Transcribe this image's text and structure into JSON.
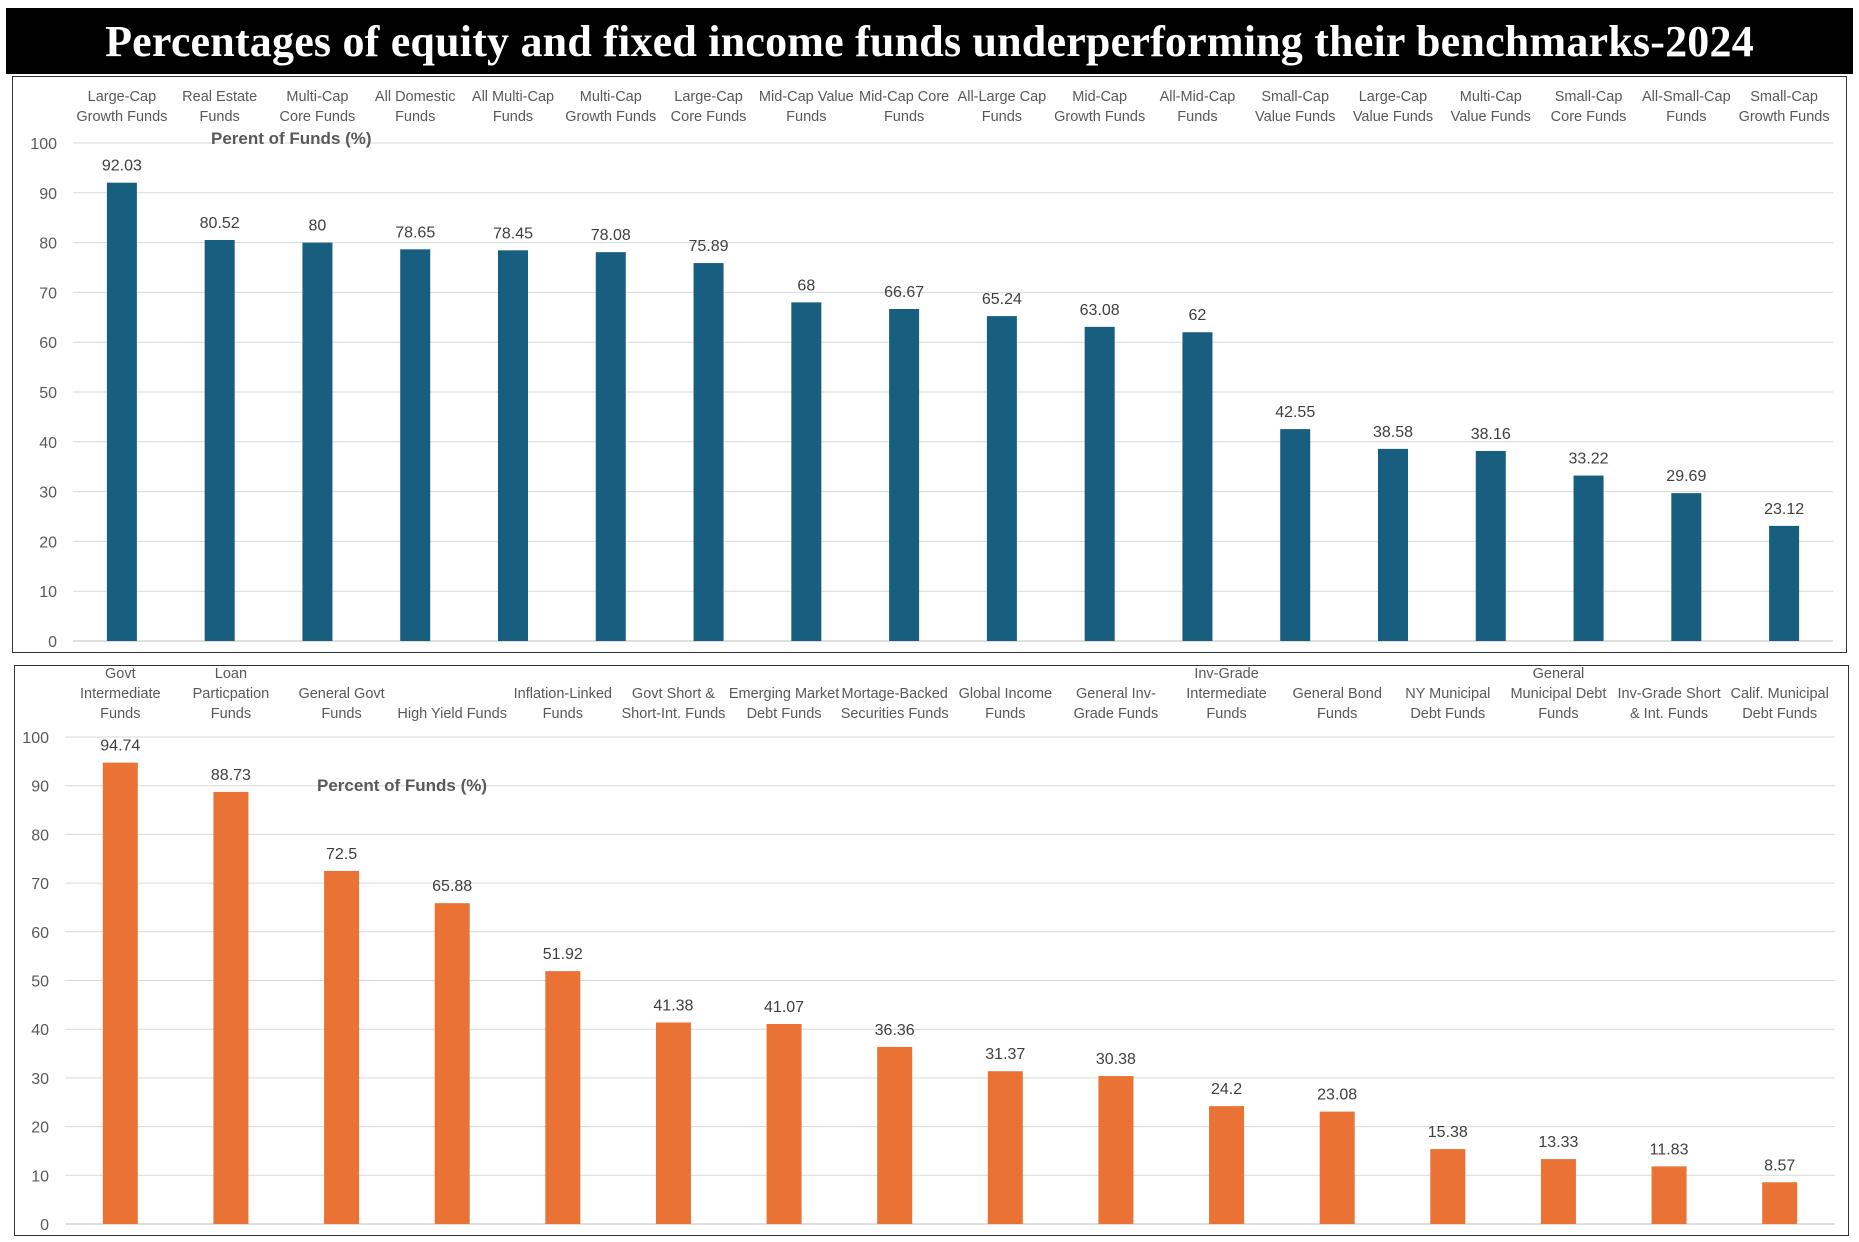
{
  "title": "Percentages of equity and fixed income funds underperforming their benchmarks-2024",
  "chart_data": [
    {
      "type": "bar",
      "name": "equity-funds",
      "annotation": "Perent of Funds (%)",
      "color": "#185F7F",
      "ylim": [
        0,
        100
      ],
      "yticks": [
        0,
        10,
        20,
        30,
        40,
        50,
        60,
        70,
        80,
        90,
        100
      ],
      "grid": true,
      "categories": [
        [
          "Large-Cap",
          "Growth Funds"
        ],
        [
          "Real Estate",
          "Funds"
        ],
        [
          "Multi-Cap",
          "Core Funds"
        ],
        [
          "All Domestic",
          "Funds"
        ],
        [
          "All Multi-Cap",
          "Funds"
        ],
        [
          "Multi-Cap",
          "Growth Funds"
        ],
        [
          "Large-Cap",
          "Core Funds"
        ],
        [
          "Mid-Cap Value",
          "Funds"
        ],
        [
          "Mid-Cap Core",
          "Funds"
        ],
        [
          "All-Large Cap",
          "Funds"
        ],
        [
          "Mid-Cap",
          "Growth Funds"
        ],
        [
          "All-Mid-Cap",
          "Funds"
        ],
        [
          "Small-Cap",
          "Value Funds"
        ],
        [
          "Large-Cap",
          "Value Funds"
        ],
        [
          "Multi-Cap",
          "Value Funds"
        ],
        [
          "Small-Cap",
          "Core Funds"
        ],
        [
          "All-Small-Cap",
          "Funds"
        ],
        [
          "Small-Cap",
          "Growth Funds"
        ]
      ],
      "values": [
        92.03,
        80.52,
        80,
        78.65,
        78.45,
        78.08,
        75.89,
        68,
        66.67,
        65.24,
        63.08,
        62,
        42.55,
        38.58,
        38.16,
        33.22,
        29.69,
        23.12
      ]
    },
    {
      "type": "bar",
      "name": "fixed-income-funds",
      "annotation": "Percent of Funds (%)",
      "color": "#EA7234",
      "ylim": [
        0,
        100
      ],
      "yticks": [
        0,
        10,
        20,
        30,
        40,
        50,
        60,
        70,
        80,
        90,
        100
      ],
      "grid": true,
      "categories": [
        [
          "Govt",
          "Intermediate",
          "Funds"
        ],
        [
          "Loan",
          "Particpation",
          "Funds"
        ],
        [
          "General Govt",
          "Funds"
        ],
        [
          "High Yield Funds"
        ],
        [
          "Inflation-Linked",
          "Funds"
        ],
        [
          "Govt Short &",
          "Short-Int. Funds"
        ],
        [
          "Emerging Market",
          "Debt Funds"
        ],
        [
          "Mortage-Backed",
          "Securities Funds"
        ],
        [
          "Global Income",
          "Funds"
        ],
        [
          "General Inv-",
          "Grade Funds"
        ],
        [
          "Inv-Grade",
          "Intermediate",
          "Funds"
        ],
        [
          "General Bond",
          "Funds"
        ],
        [
          "NY Municipal",
          "Debt Funds"
        ],
        [
          "General",
          "Municipal Debt",
          "Funds"
        ],
        [
          "Inv-Grade Short",
          "& Int. Funds"
        ],
        [
          "Calif. Municipal",
          "Debt Funds"
        ]
      ],
      "values": [
        94.74,
        88.73,
        72.5,
        65.88,
        51.92,
        41.38,
        41.07,
        36.36,
        31.37,
        30.38,
        24.2,
        23.08,
        15.38,
        13.33,
        11.83,
        8.57
      ]
    }
  ]
}
